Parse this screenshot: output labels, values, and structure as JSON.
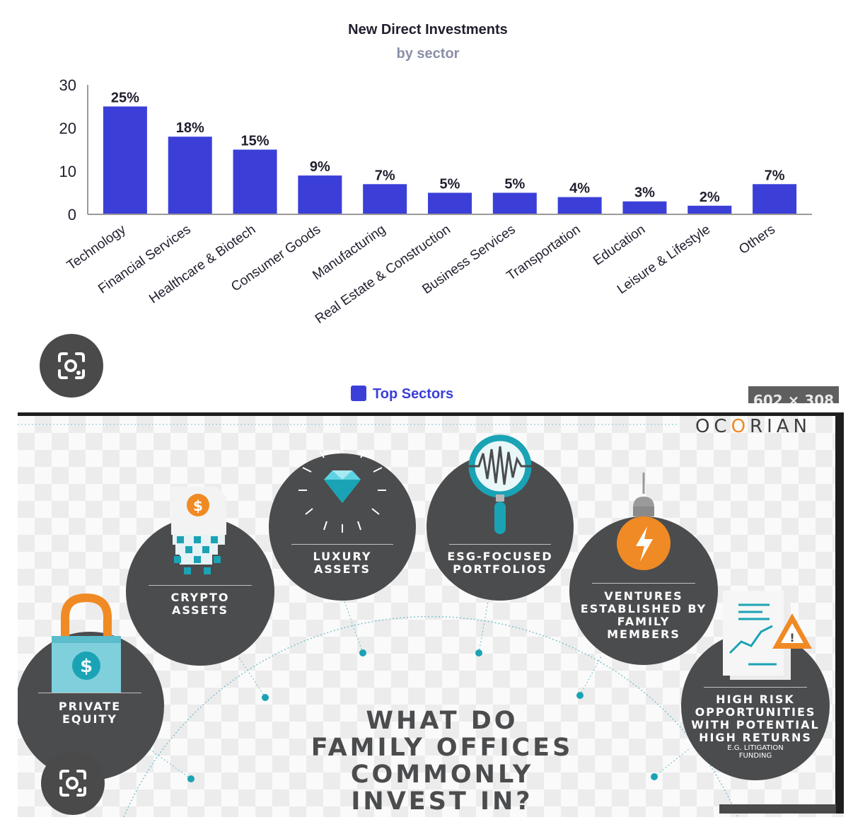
{
  "chart_data": {
    "type": "bar",
    "title": "New Direct Investments",
    "subtitle": "by sector",
    "categories": [
      "Technology",
      "Financial Services",
      "Healthcare & Biotech",
      "Consumer Goods",
      "Manufacturing",
      "Real Estate & Construction",
      "Business Services",
      "Transportation",
      "Education",
      "Leisure & Lifestyle",
      "Others"
    ],
    "values": [
      25,
      18,
      15,
      9,
      7,
      5,
      5,
      4,
      3,
      2,
      7
    ],
    "data_labels": [
      "25%",
      "18%",
      "15%",
      "9%",
      "7%",
      "5%",
      "5%",
      "4%",
      "3%",
      "2%",
      "7%"
    ],
    "ylim": [
      0,
      30
    ],
    "yticks": [
      0,
      10,
      20,
      30
    ],
    "xlabel": "",
    "ylabel": "",
    "grid": false,
    "legend": {
      "entries": [
        "Top Sectors"
      ],
      "placement": "bottom-center"
    },
    "bar_color": "#3b3fd8"
  },
  "overlay": {
    "size_badge": "602 × 308"
  },
  "infographic": {
    "brand": {
      "pre": "OC",
      "highlight": "O",
      "post": "RIAN"
    },
    "headline": [
      "WHAT DO",
      "FAMILY OFFICES",
      "COMMONLY",
      "INVEST IN?"
    ],
    "categories": [
      {
        "lines": [
          "PRIVATE",
          "EQUITY"
        ],
        "icon": "padlock-dollar-icon"
      },
      {
        "lines": [
          "CRYPTO",
          "ASSETS"
        ],
        "icon": "crypto-coin-icon"
      },
      {
        "lines": [
          "LUXURY",
          "ASSETS"
        ],
        "icon": "diamond-icon"
      },
      {
        "lines": [
          "ESG-FOCUSED",
          "PORTFOLIOS"
        ],
        "icon": "magnifier-icon"
      },
      {
        "lines": [
          "VENTURES",
          "ESTABLISHED BY",
          "FAMILY",
          "MEMBERS"
        ],
        "icon": "lightbulb-icon"
      },
      {
        "lines": [
          "HIGH RISK",
          "OPPORTUNITIES",
          "WITH POTENTIAL",
          "HIGH RETURNS"
        ],
        "note": [
          "E.G. LITIGATION",
          "FUNDING"
        ],
        "icon": "risk-chart-icon"
      }
    ],
    "colors": {
      "circle": "#4b4c4e",
      "accent_teal": "#1aa3b5",
      "accent_orange": "#f08a24"
    }
  }
}
